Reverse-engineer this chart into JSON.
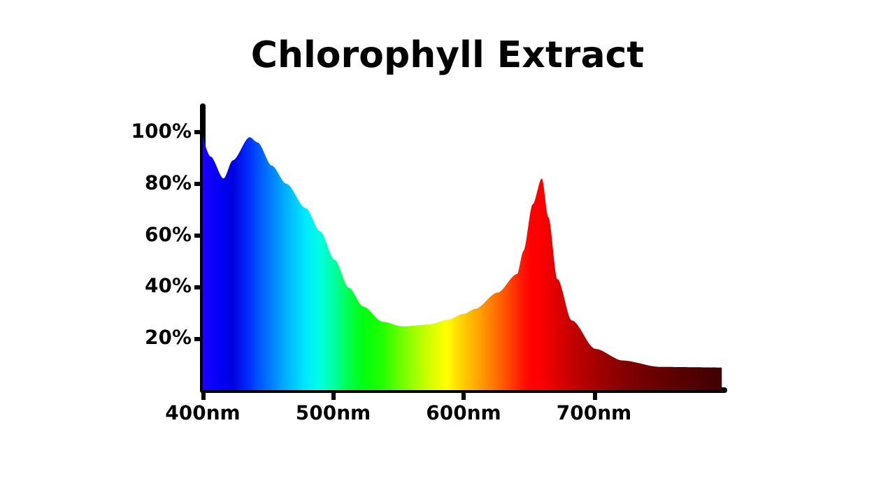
{
  "chart_data": {
    "type": "area",
    "title": "Chlorophyll Extract",
    "xlim": [
      400,
      800
    ],
    "xticks": [
      {
        "value": 400,
        "label": "400nm"
      },
      {
        "value": 500,
        "label": "500nm"
      },
      {
        "value": 600,
        "label": "600nm"
      },
      {
        "value": 700,
        "label": "700nm"
      }
    ],
    "ylim": [
      0,
      110
    ],
    "yticks": [
      {
        "value": 20,
        "label": "20%"
      },
      {
        "value": 40,
        "label": "40%"
      },
      {
        "value": 60,
        "label": "60%"
      },
      {
        "value": 80,
        "label": "80%"
      },
      {
        "value": 100,
        "label": "100%"
      }
    ],
    "grid": false,
    "marker": "none",
    "series": [
      {
        "x": [
          400,
          406,
          416,
          423,
          436,
          442,
          453,
          464,
          479,
          490,
          501,
          512,
          523,
          538,
          553,
          574,
          588,
          600,
          609,
          626,
          641,
          646,
          653,
          660,
          665,
          672,
          683,
          701,
          722,
          750,
          798
        ],
        "values": [
          98,
          90.5,
          82,
          89,
          98,
          96,
          87,
          80,
          70.5,
          61.5,
          50.5,
          39.6,
          32.4,
          26.5,
          24.7,
          25.5,
          27.3,
          29.5,
          31.5,
          37.8,
          45,
          54,
          72,
          82,
          67,
          43,
          27,
          16,
          11.5,
          9,
          8.7
        ],
        "colors": [
          "#1a00ff",
          "#0f00ff",
          "#0000f0",
          "#0000e0",
          "#0030ff",
          "#0050ff",
          "#0080ff",
          "#00b0ff",
          "#00e8ff",
          "#00ffe0",
          "#00ffa0",
          "#00ff50",
          "#00ff10",
          "#20ff00",
          "#70ff00",
          "#d0ff00",
          "#ffff00",
          "#ffd000",
          "#ffb000",
          "#ff7000",
          "#ff3000",
          "#ff1800",
          "#ff0000",
          "#ff0000",
          "#f00000",
          "#e00000",
          "#c80000",
          "#a80000",
          "#880000",
          "#680000",
          "#400000"
        ]
      }
    ]
  }
}
